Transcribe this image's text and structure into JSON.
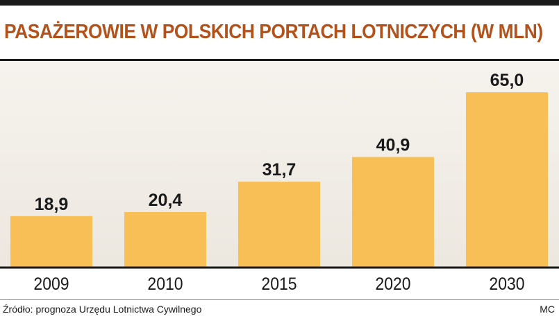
{
  "chart_data": {
    "type": "bar",
    "title": "PASAŻEROWIE W POLSKICH PORTACH LOTNICZYCH (W MLN)",
    "categories": [
      "2009",
      "2010",
      "2015",
      "2020",
      "2030"
    ],
    "values": [
      18.9,
      20.4,
      31.7,
      40.9,
      65.0
    ],
    "value_labels": [
      "18,9",
      "20,4",
      "31,7",
      "40,9",
      "65,0"
    ],
    "ylim": [
      0,
      72
    ],
    "grid": false,
    "bar_color": "#f9bf57"
  },
  "footer": {
    "source": "Źródło: prognoza Urzędu Lotnictwa Cywilnego",
    "credit": "MC"
  },
  "colors": {
    "title": "#b4521c",
    "rules": "#1a1a1a",
    "plot_background": "#f3efe8"
  }
}
